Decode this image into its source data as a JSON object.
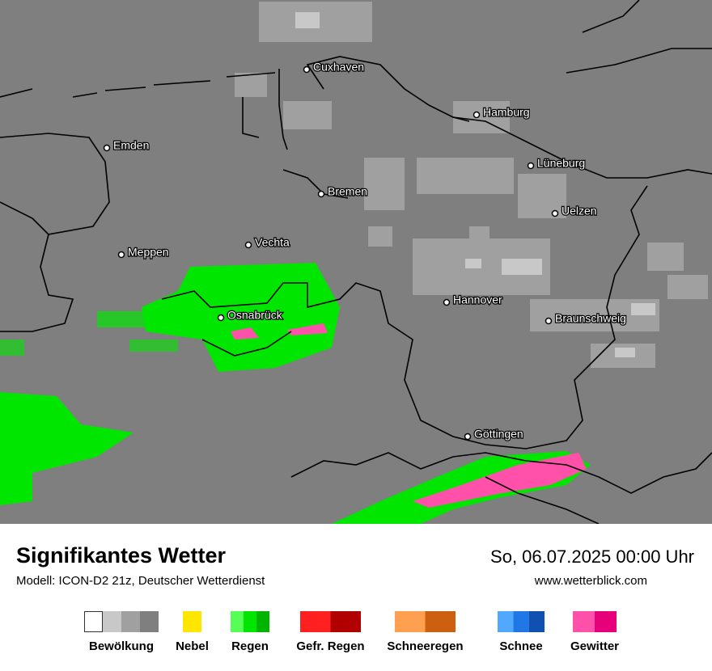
{
  "map": {
    "cities": [
      "Cuxhaven",
      "Hamburg",
      "Emden",
      "Lüneburg",
      "Bremen",
      "Uelzen",
      "Vechta",
      "Meppen",
      "Hannover",
      "Osnabrück",
      "Braunschweig",
      "Göttingen"
    ]
  },
  "footer": {
    "title": "Signifikantes Wetter",
    "subtitle": "Modell: ICON-D2 21z, Deutscher Wetterdienst",
    "date": "So, 06.07.2025 00:00 Uhr",
    "website": "www.wetterblick.com"
  },
  "legend": [
    {
      "label": "Bewölkung",
      "colors": [
        "#ffffff",
        "#c8c8c8",
        "#a0a0a0",
        "#7f7f7f"
      ]
    },
    {
      "label": "Nebel",
      "colors": [
        "#ffe600"
      ]
    },
    {
      "label": "Regen",
      "colors": [
        "#55ff55",
        "#00e600",
        "#00b400"
      ]
    },
    {
      "label": "Gefr. Regen",
      "colors": [
        "#ff2020",
        "#b00000"
      ]
    },
    {
      "label": "Schneeregen",
      "colors": [
        "#ffa050",
        "#cc6010"
      ]
    },
    {
      "label": "Schnee",
      "colors": [
        "#50a8ff",
        "#1f78e6",
        "#1050b0"
      ]
    },
    {
      "label": "Gewitter",
      "colors": [
        "#ff50aa",
        "#e6007a"
      ]
    }
  ]
}
